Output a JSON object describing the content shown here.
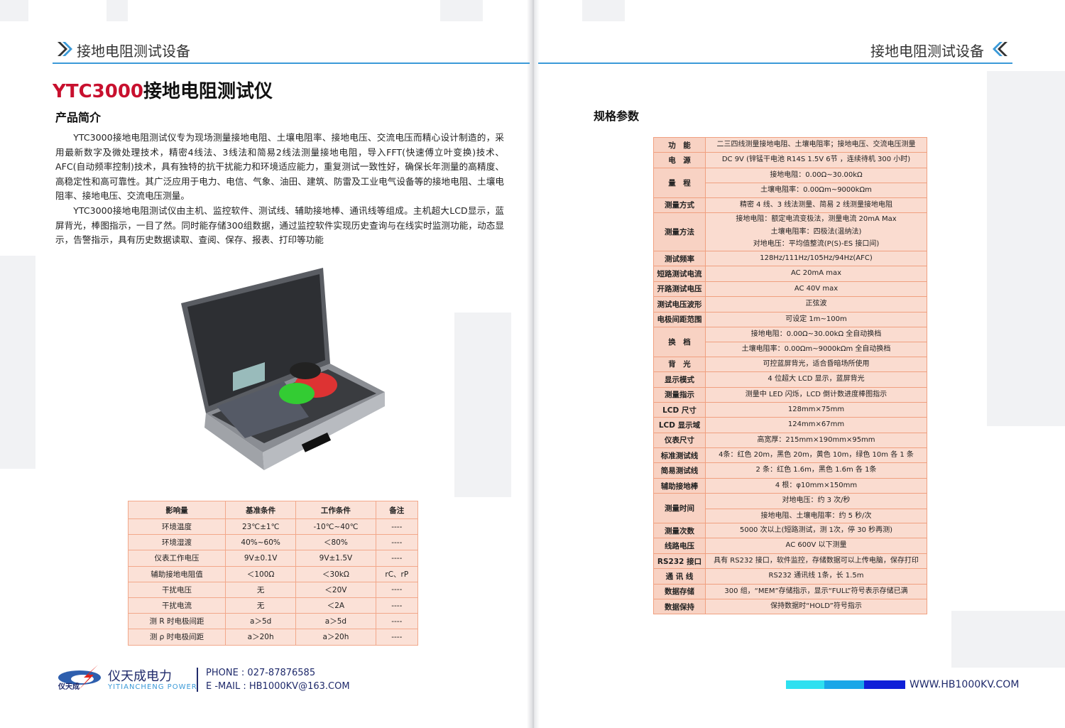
{
  "header": {
    "left_title": "接地电阻测试设备",
    "right_title": "接地电阻测试设备"
  },
  "product": {
    "model": "YTC3000",
    "name": "接地电阻测试仪"
  },
  "intro": {
    "heading": "产品简介",
    "paragraphs": [
      "YTC3000接地电阻测试仪专为现场测量接地电阻、土壤电阻率、接地电压、交流电压而精心设计制造的，采用最新数字及微处理技术，精密4线法、3线法和简易2线法测量接地电阻，导入FFT(快速傅立叶变换)技术、AFC(自动频率控制)技术，具有独特的抗干扰能力和环境适应能力，重复测试一致性好，确保长年测量的高精度、高稳定性和高可靠性。其广泛应用于电力、电信、气象、油田、建筑、防雷及工业电气设备等的接地电阻、土壤电阻率、接地电压、交流电压测量。",
      "YTC3000接地电阻测试仪由主机、监控软件、测试线、辅助接地棒、通讯线等组成。主机超大LCD显示，蓝屏背光，棒图指示，一目了然。同时能存储300组数据，通过监控软件实现历史查询与在线实时监测功能，动态显示，告警指示，具有历史数据读取、查阅、保存、报表、打印等功能"
    ]
  },
  "conditions_table": {
    "headers": [
      "影响量",
      "基准条件",
      "工作条件",
      "备注"
    ],
    "rows": [
      [
        "环境温度",
        "23℃±1℃",
        "-10℃~40℃",
        "----"
      ],
      [
        "环境湿渡",
        "40%~60%",
        "＜80%",
        "----"
      ],
      [
        "仪表工作电压",
        "9V±0.1V",
        "9V±1.5V",
        "----"
      ],
      [
        "辅助接地电阻值",
        "＜100Ω",
        "＜30kΩ",
        "rC、rP"
      ],
      [
        "干扰电压",
        "无",
        "＜20V",
        "----"
      ],
      [
        "干扰电流",
        "无",
        "＜2A",
        "----"
      ],
      [
        "测 R 时电极间距",
        "a＞5d",
        "a＞5d",
        "----"
      ],
      [
        "测 ρ 时电极间距",
        "a＞20h",
        "a＞20h",
        "----"
      ]
    ]
  },
  "specs": {
    "heading": "规格参数",
    "rows": [
      {
        "label": "功　能",
        "values": [
          "二三四线测量接地电阻、土壤电阻率；接地电压、交流电压测量"
        ]
      },
      {
        "label": "电　源",
        "values": [
          "DC 9V (锌锰干电池 R14S 1.5V 6节 ，连续待机 300 小时)"
        ]
      },
      {
        "label": "量　程",
        "split": true,
        "values": [
          "接地电阻：0.00Ω~30.00kΩ",
          "土壤电阻率：0.00Ωm~9000kΩm"
        ]
      },
      {
        "label": "测量方式",
        "values": [
          "精密 4 线、3 线法测量、简易 2 线测量接地电阻"
        ]
      },
      {
        "label": "测量方法",
        "values": [
          "接地电阻：额定电流变极法，测量电流 20mA Max",
          "土壤电阻率：四极法(温纳法)",
          "对地电压：平均值整流(P(S)-ES 接口间)"
        ]
      },
      {
        "label": "测试频率",
        "values": [
          "128Hz/111Hz/105Hz/94Hz(AFC)"
        ]
      },
      {
        "label": "短路测试电流",
        "values": [
          "AC 20mA max"
        ]
      },
      {
        "label": "开路测试电压",
        "values": [
          "AC 40V max"
        ]
      },
      {
        "label": "测试电压波形",
        "values": [
          "正弦波"
        ]
      },
      {
        "label": "电极间距范围",
        "values": [
          "可设定 1m~100m"
        ]
      },
      {
        "label": "换　档",
        "split": true,
        "values": [
          "接地电阻：0.00Ω~30.00kΩ 全自动换档",
          "土壤电阻率：0.00Ωm~9000kΩm 全自动换档"
        ]
      },
      {
        "label": "背　光",
        "values": [
          "可控蓝屏背光，适合昏暗场所使用"
        ]
      },
      {
        "label": "显示模式",
        "values": [
          "4 位超大 LCD 显示，蓝屏背光"
        ]
      },
      {
        "label": "测量指示",
        "values": [
          "测量中 LED 闪烁，LCD 倒计数进度棒图指示"
        ]
      },
      {
        "label": "LCD 尺寸",
        "values": [
          "128mm×75mm"
        ]
      },
      {
        "label": "LCD 显示域",
        "values": [
          "124mm×67mm"
        ]
      },
      {
        "label": "仪表尺寸",
        "values": [
          "高宽厚：215mm×190mm×95mm"
        ]
      },
      {
        "label": "标准测试线",
        "values": [
          "4条：红色 20m，黑色 20m，黄色 10m，绿色 10m 各 1 条"
        ]
      },
      {
        "label": "简易测试线",
        "values": [
          "2 条：红色 1.6m，黑色 1.6m 各 1条"
        ]
      },
      {
        "label": "辅助接地棒",
        "values": [
          "4 根：φ10mm×150mm"
        ]
      },
      {
        "label": "测量时间",
        "split": true,
        "values": [
          "对地电压：约 3 次/秒",
          "接地电阻、土壤电阻率：约 5 秒/次"
        ]
      },
      {
        "label": "测量次数",
        "values": [
          "5000 次以上(短路测试，测 1次，停 30 秒再测)"
        ]
      },
      {
        "label": "线路电压",
        "values": [
          "AC 600V 以下测量"
        ]
      },
      {
        "label": "RS232 接口",
        "values": [
          "具有 RS232 接口，软件监控，存储数据可以上传电脑，保存打印"
        ]
      },
      {
        "label": "通 讯 线",
        "values": [
          "RS232 通讯线 1条，长 1.5m"
        ]
      },
      {
        "label": "数据存储",
        "values": [
          "300 组，“MEM”存储指示，显示“FULL”符号表示存储已满"
        ]
      },
      {
        "label": "数据保持",
        "values": [
          "保持数据时“HOLD”符号指示"
        ]
      }
    ]
  },
  "footer": {
    "brand_cn": "仪天成电力",
    "brand_en": "YITIANCHENG POWER",
    "logo_text": "仪天成",
    "phone": "PHONE : 027-87876585",
    "email": "E -MAIL : HB1000KV@163.COM",
    "website": "WWW.HB1000KV.COM"
  },
  "colors": {
    "accent_blue": "#3b9ad8",
    "title_red": "#c8102e",
    "table_fill": "#fadcd0",
    "table_border": "#f0a080"
  },
  "image": {
    "subject": "product-photo-case"
  }
}
